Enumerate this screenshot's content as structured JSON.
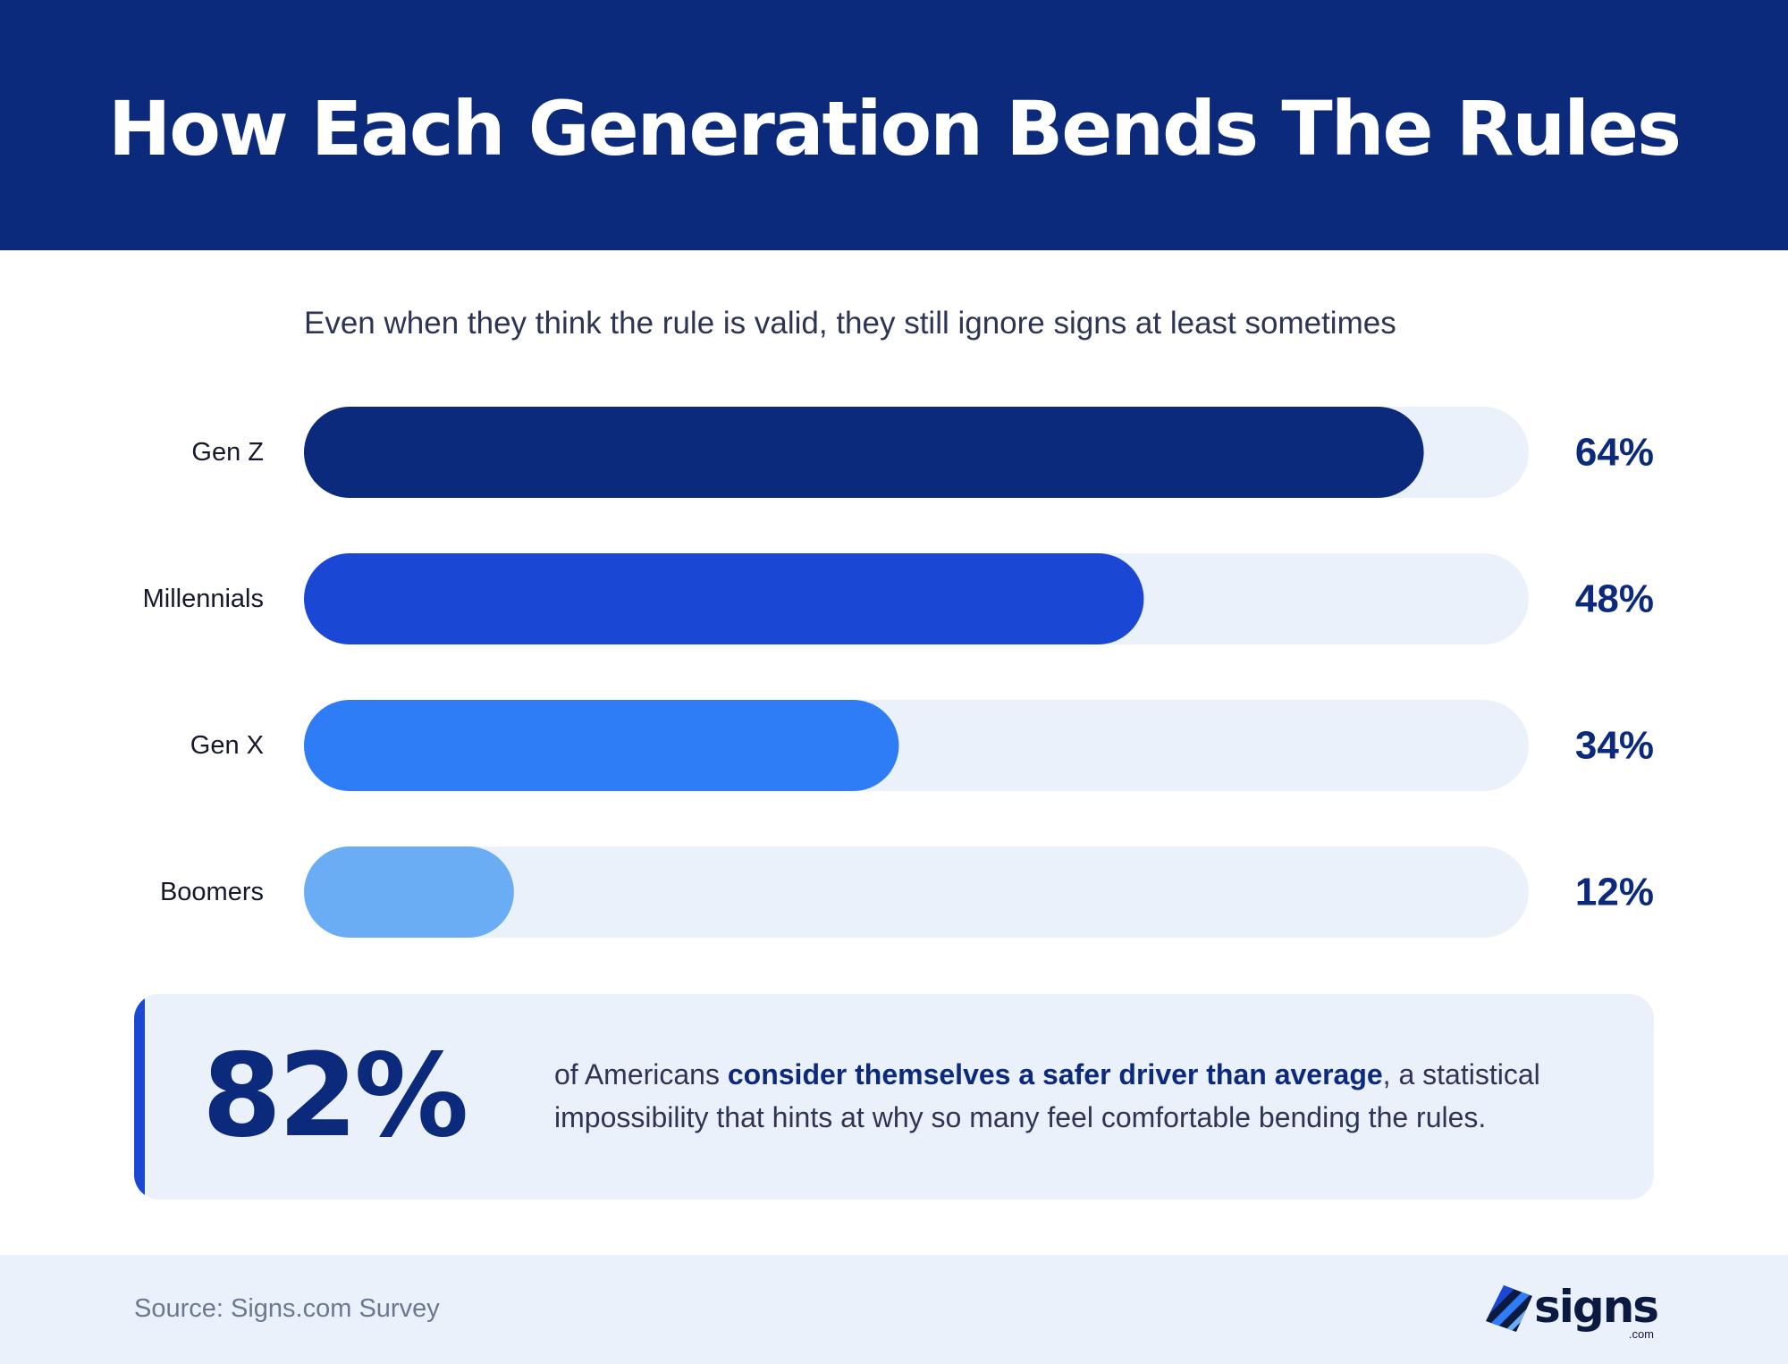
{
  "header": {
    "title": "How Each Generation Bends The Rules"
  },
  "subtitle": "Even when they think the rule is valid, they still ignore signs at least sometimes",
  "chart_data": {
    "type": "bar",
    "orientation": "horizontal",
    "title": "How Each Generation Bends The Rules",
    "subtitle": "Even when they think the rule is valid, they still ignore signs at least sometimes",
    "categories": [
      "Gen Z",
      "Millennials",
      "Gen X",
      "Boomers"
    ],
    "values": [
      64,
      48,
      34,
      12
    ],
    "value_labels": [
      "64%",
      "48%",
      "34%",
      "12%"
    ],
    "unit": "%",
    "xlim": [
      0,
      70
    ],
    "colors": [
      "#0c2a7b",
      "#1a47d4",
      "#2e7cf6",
      "#6aadf4"
    ],
    "track_color": "#ebf1fa",
    "grid": false,
    "legend": "none"
  },
  "callout": {
    "stat": "82%",
    "text_before": "of Americans ",
    "text_bold": "consider themselves a safer driver than average",
    "text_after": ", a statistical impossibility that hints at why so many feel comfortable bending the rules.",
    "accent_color": "#1a47d4"
  },
  "footer": {
    "source": "Source: Signs.com Survey",
    "logo_word": "signs",
    "logo_sub": ".com",
    "logo_icon": "striped-diamond-icon"
  }
}
